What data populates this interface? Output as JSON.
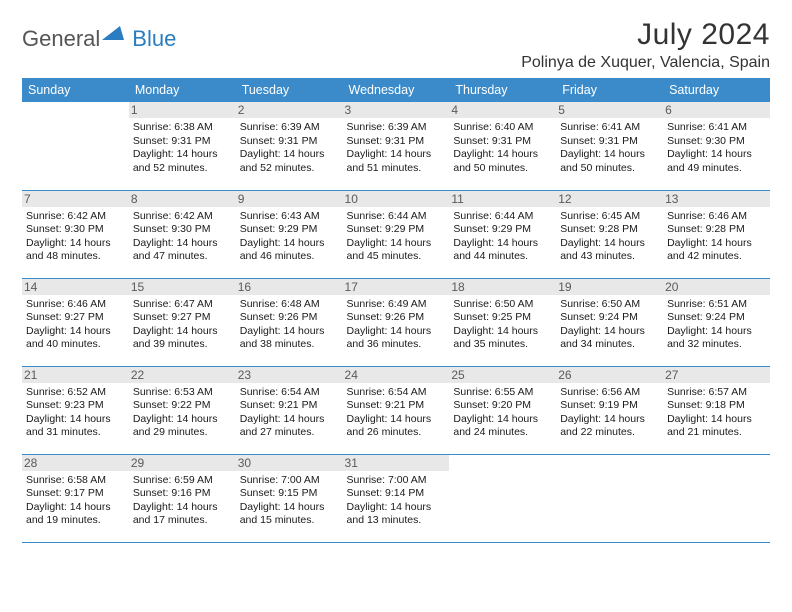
{
  "logo": {
    "text1": "General",
    "text2": "Blue"
  },
  "header": {
    "month_title": "July 2024",
    "location": "Polinya de Xuquer, Valencia, Spain"
  },
  "colors": {
    "header_bg": "#3b8bca",
    "header_text": "#ffffff",
    "border": "#3b8bca",
    "daynum_bg": "#e8e8e8",
    "daynum_text": "#5a5a5a",
    "logo_gray": "#555555",
    "logo_blue": "#2a7dc0"
  },
  "day_headers": [
    "Sunday",
    "Monday",
    "Tuesday",
    "Wednesday",
    "Thursday",
    "Friday",
    "Saturday"
  ],
  "weeks": [
    [
      null,
      {
        "n": "1",
        "sr": "6:38 AM",
        "ss": "9:31 PM",
        "dl1": "14 hours",
        "dl2": "and 52 minutes."
      },
      {
        "n": "2",
        "sr": "6:39 AM",
        "ss": "9:31 PM",
        "dl1": "14 hours",
        "dl2": "and 52 minutes."
      },
      {
        "n": "3",
        "sr": "6:39 AM",
        "ss": "9:31 PM",
        "dl1": "14 hours",
        "dl2": "and 51 minutes."
      },
      {
        "n": "4",
        "sr": "6:40 AM",
        "ss": "9:31 PM",
        "dl1": "14 hours",
        "dl2": "and 50 minutes."
      },
      {
        "n": "5",
        "sr": "6:41 AM",
        "ss": "9:31 PM",
        "dl1": "14 hours",
        "dl2": "and 50 minutes."
      },
      {
        "n": "6",
        "sr": "6:41 AM",
        "ss": "9:30 PM",
        "dl1": "14 hours",
        "dl2": "and 49 minutes."
      }
    ],
    [
      {
        "n": "7",
        "sr": "6:42 AM",
        "ss": "9:30 PM",
        "dl1": "14 hours",
        "dl2": "and 48 minutes."
      },
      {
        "n": "8",
        "sr": "6:42 AM",
        "ss": "9:30 PM",
        "dl1": "14 hours",
        "dl2": "and 47 minutes."
      },
      {
        "n": "9",
        "sr": "6:43 AM",
        "ss": "9:29 PM",
        "dl1": "14 hours",
        "dl2": "and 46 minutes."
      },
      {
        "n": "10",
        "sr": "6:44 AM",
        "ss": "9:29 PM",
        "dl1": "14 hours",
        "dl2": "and 45 minutes."
      },
      {
        "n": "11",
        "sr": "6:44 AM",
        "ss": "9:29 PM",
        "dl1": "14 hours",
        "dl2": "and 44 minutes."
      },
      {
        "n": "12",
        "sr": "6:45 AM",
        "ss": "9:28 PM",
        "dl1": "14 hours",
        "dl2": "and 43 minutes."
      },
      {
        "n": "13",
        "sr": "6:46 AM",
        "ss": "9:28 PM",
        "dl1": "14 hours",
        "dl2": "and 42 minutes."
      }
    ],
    [
      {
        "n": "14",
        "sr": "6:46 AM",
        "ss": "9:27 PM",
        "dl1": "14 hours",
        "dl2": "and 40 minutes."
      },
      {
        "n": "15",
        "sr": "6:47 AM",
        "ss": "9:27 PM",
        "dl1": "14 hours",
        "dl2": "and 39 minutes."
      },
      {
        "n": "16",
        "sr": "6:48 AM",
        "ss": "9:26 PM",
        "dl1": "14 hours",
        "dl2": "and 38 minutes."
      },
      {
        "n": "17",
        "sr": "6:49 AM",
        "ss": "9:26 PM",
        "dl1": "14 hours",
        "dl2": "and 36 minutes."
      },
      {
        "n": "18",
        "sr": "6:50 AM",
        "ss": "9:25 PM",
        "dl1": "14 hours",
        "dl2": "and 35 minutes."
      },
      {
        "n": "19",
        "sr": "6:50 AM",
        "ss": "9:24 PM",
        "dl1": "14 hours",
        "dl2": "and 34 minutes."
      },
      {
        "n": "20",
        "sr": "6:51 AM",
        "ss": "9:24 PM",
        "dl1": "14 hours",
        "dl2": "and 32 minutes."
      }
    ],
    [
      {
        "n": "21",
        "sr": "6:52 AM",
        "ss": "9:23 PM",
        "dl1": "14 hours",
        "dl2": "and 31 minutes."
      },
      {
        "n": "22",
        "sr": "6:53 AM",
        "ss": "9:22 PM",
        "dl1": "14 hours",
        "dl2": "and 29 minutes."
      },
      {
        "n": "23",
        "sr": "6:54 AM",
        "ss": "9:21 PM",
        "dl1": "14 hours",
        "dl2": "and 27 minutes."
      },
      {
        "n": "24",
        "sr": "6:54 AM",
        "ss": "9:21 PM",
        "dl1": "14 hours",
        "dl2": "and 26 minutes."
      },
      {
        "n": "25",
        "sr": "6:55 AM",
        "ss": "9:20 PM",
        "dl1": "14 hours",
        "dl2": "and 24 minutes."
      },
      {
        "n": "26",
        "sr": "6:56 AM",
        "ss": "9:19 PM",
        "dl1": "14 hours",
        "dl2": "and 22 minutes."
      },
      {
        "n": "27",
        "sr": "6:57 AM",
        "ss": "9:18 PM",
        "dl1": "14 hours",
        "dl2": "and 21 minutes."
      }
    ],
    [
      {
        "n": "28",
        "sr": "6:58 AM",
        "ss": "9:17 PM",
        "dl1": "14 hours",
        "dl2": "and 19 minutes."
      },
      {
        "n": "29",
        "sr": "6:59 AM",
        "ss": "9:16 PM",
        "dl1": "14 hours",
        "dl2": "and 17 minutes."
      },
      {
        "n": "30",
        "sr": "7:00 AM",
        "ss": "9:15 PM",
        "dl1": "14 hours",
        "dl2": "and 15 minutes."
      },
      {
        "n": "31",
        "sr": "7:00 AM",
        "ss": "9:14 PM",
        "dl1": "14 hours",
        "dl2": "and 13 minutes."
      },
      null,
      null,
      null
    ]
  ],
  "labels": {
    "sunrise": "Sunrise:",
    "sunset": "Sunset:",
    "daylight": "Daylight:"
  }
}
